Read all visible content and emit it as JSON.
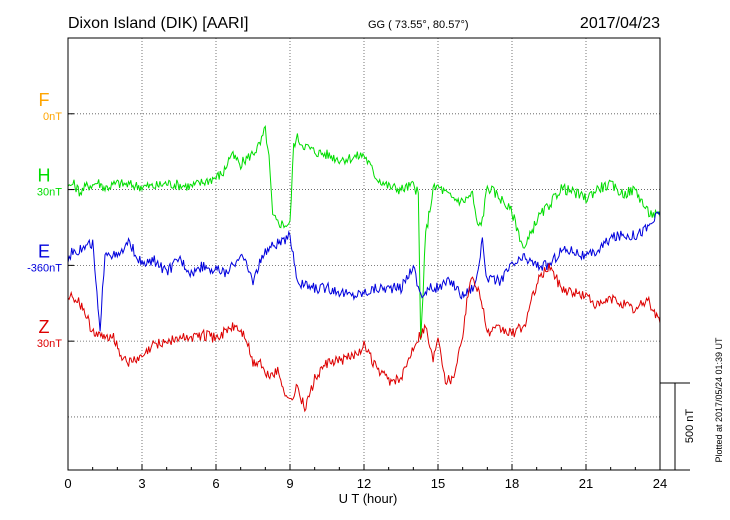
{
  "header": {
    "station": "Dixon Island (DIK)  [AARI]",
    "coords": "GG ( 73.55°,  80.57°)",
    "date": "2017/04/23"
  },
  "side_note": "Plotted at 2017/05/24 01:39 UT",
  "scale_label": "500 nT",
  "colors": {
    "F": "#ffa500",
    "H": "#00dd00",
    "E": "#0000dd",
    "Z": "#dd0000"
  },
  "chart_data": {
    "type": "line",
    "xlabel": "U T (hour)",
    "ylabel": "",
    "xlim": [
      0,
      24
    ],
    "ylim": [
      -1850,
      1000
    ],
    "grid": true,
    "x_ticks": [
      "0",
      "3",
      "6",
      "9",
      "12",
      "15",
      "18",
      "21",
      "24"
    ],
    "scale_bar_nT": 500,
    "series": [
      {
        "name": "F",
        "baseline_label": "0nT",
        "color": "#ffa500",
        "x": [],
        "y": []
      },
      {
        "name": "H",
        "baseline_label": "30nT",
        "color": "#00dd00",
        "x": [
          0,
          0.2,
          0.5,
          0.8,
          1.0,
          1.2,
          1.5,
          2.0,
          2.5,
          3.0,
          3.5,
          4.0,
          4.5,
          5.0,
          5.5,
          6.0,
          6.3,
          6.6,
          7.0,
          7.5,
          7.8,
          8.0,
          8.15,
          8.3,
          8.5,
          8.8,
          9.0,
          9.15,
          9.3,
          9.5,
          10.0,
          10.5,
          11.0,
          11.5,
          12.0,
          12.5,
          13.0,
          13.5,
          14.0,
          14.2,
          14.3,
          14.5,
          14.8,
          15.0,
          15.5,
          16.0,
          16.4,
          16.6,
          16.8,
          17.0,
          17.5,
          18.0,
          18.5,
          19.0,
          19.5,
          20.0,
          20.5,
          21.0,
          21.5,
          22.0,
          22.5,
          23.0,
          23.5,
          24.0
        ],
        "y": [
          10,
          40,
          -20,
          30,
          30,
          50,
          10,
          40,
          30,
          20,
          20,
          40,
          30,
          20,
          50,
          80,
          110,
          230,
          170,
          240,
          300,
          400,
          200,
          -180,
          -220,
          -230,
          -230,
          300,
          340,
          300,
          250,
          230,
          200,
          210,
          230,
          80,
          20,
          0,
          30,
          -30,
          -1000,
          -300,
          0,
          20,
          -50,
          -80,
          -30,
          -250,
          -200,
          20,
          -50,
          -150,
          -400,
          -200,
          -100,
          10,
          -20,
          -60,
          10,
          30,
          -30,
          0,
          -150,
          -180
        ]
      },
      {
        "name": "E",
        "baseline_label": "-360nT",
        "color": "#0000dd",
        "x": [
          0,
          0.2,
          0.5,
          1.0,
          1.3,
          1.5,
          2.0,
          2.5,
          3.0,
          3.5,
          4.0,
          4.5,
          5.0,
          5.5,
          6.0,
          6.5,
          7.0,
          7.5,
          8.0,
          8.5,
          8.8,
          9.0,
          9.3,
          9.5,
          10.0,
          10.5,
          11.0,
          11.5,
          12.0,
          12.5,
          13.0,
          13.5,
          14.0,
          14.2,
          14.4,
          14.7,
          15.0,
          15.5,
          16.0,
          16.5,
          16.8,
          17.0,
          17.5,
          18.0,
          18.5,
          19.0,
          19.5,
          20.0,
          20.5,
          21.0,
          21.5,
          22.0,
          22.5,
          23.0,
          23.5,
          24.0
        ],
        "y": [
          50,
          100,
          100,
          150,
          -460,
          100,
          50,
          150,
          0,
          30,
          -50,
          50,
          -50,
          0,
          -30,
          -50,
          80,
          -100,
          100,
          150,
          150,
          200,
          -100,
          -130,
          -150,
          -150,
          -170,
          -200,
          -180,
          -150,
          -150,
          -150,
          0,
          -150,
          -200,
          -150,
          -150,
          -100,
          -200,
          -130,
          150,
          -100,
          -100,
          0,
          50,
          0,
          0,
          100,
          100,
          50,
          100,
          180,
          200,
          200,
          250,
          350
        ]
      },
      {
        "name": "Z",
        "baseline_label": "30nT",
        "color": "#dd0000",
        "x": [
          0,
          0.3,
          0.6,
          0.9,
          1.2,
          1.5,
          1.8,
          2.1,
          2.5,
          3.0,
          3.5,
          4.0,
          4.5,
          5.0,
          5.5,
          6.0,
          6.5,
          6.8,
          7.2,
          7.5,
          7.8,
          8.0,
          8.5,
          8.8,
          9.0,
          9.3,
          9.6,
          10.0,
          10.5,
          11.0,
          11.5,
          12.0,
          12.5,
          13.0,
          13.5,
          14.0,
          14.2,
          14.5,
          14.8,
          15.0,
          15.3,
          15.6,
          16.0,
          16.3,
          16.5,
          16.8,
          17.0,
          17.5,
          18.0,
          18.5,
          19.0,
          19.5,
          20.0,
          20.5,
          21.0,
          21.5,
          22.0,
          22.5,
          23.0,
          23.5,
          24.0
        ],
        "y": [
          300,
          280,
          220,
          100,
          30,
          20,
          50,
          -80,
          -140,
          -110,
          -20,
          0,
          20,
          30,
          40,
          20,
          80,
          100,
          30,
          -150,
          -130,
          -230,
          -200,
          -330,
          -400,
          -300,
          -450,
          -250,
          -150,
          -130,
          -100,
          -30,
          -180,
          -260,
          -260,
          -30,
          30,
          100,
          -130,
          50,
          -250,
          -250,
          50,
          400,
          400,
          250,
          50,
          80,
          50,
          100,
          380,
          500,
          350,
          320,
          300,
          230,
          280,
          250,
          200,
          280,
          120
        ]
      }
    ]
  }
}
